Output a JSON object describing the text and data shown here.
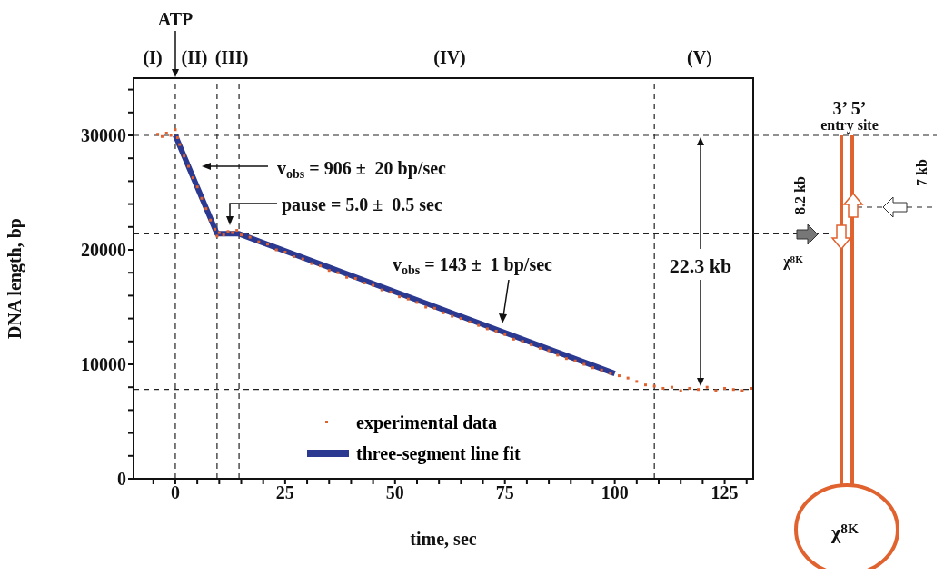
{
  "chart_data": {
    "type": "scatter",
    "xlabel": "time, sec",
    "ylabel": "DNA length, bp",
    "xlim": [
      -9.5,
      131.5
    ],
    "ylim": [
      0,
      35000
    ],
    "xticks": [
      {
        "value": -5,
        "label": null
      },
      0,
      {
        "value": 5,
        "label": null
      },
      {
        "value": 10,
        "label": null
      },
      {
        "value": 15,
        "label": null
      },
      {
        "value": 20,
        "label": null
      },
      25,
      {
        "value": 30,
        "label": null
      },
      {
        "value": 35,
        "label": null
      },
      {
        "value": 40,
        "label": null
      },
      {
        "value": 45,
        "label": null
      },
      50,
      {
        "value": 55,
        "label": null
      },
      {
        "value": 60,
        "label": null
      },
      {
        "value": 65,
        "label": null
      },
      {
        "value": 70,
        "label": null
      },
      75,
      {
        "value": 80,
        "label": null
      },
      {
        "value": 85,
        "label": null
      },
      {
        "value": 90,
        "label": null
      },
      {
        "value": 95,
        "label": null
      },
      100,
      {
        "value": 105,
        "label": null
      },
      {
        "value": 110,
        "label": null
      },
      {
        "value": 115,
        "label": null
      },
      {
        "value": 120,
        "label": null
      },
      125,
      {
        "value": 130,
        "label": null
      }
    ],
    "yticks": [
      0,
      {
        "value": 2000,
        "label": null
      },
      {
        "value": 4000,
        "label": null
      },
      {
        "value": 6000,
        "label": null
      },
      {
        "value": 8000,
        "label": null
      },
      10000,
      {
        "value": 12000,
        "label": null
      },
      {
        "value": 14000,
        "label": null
      },
      {
        "value": 16000,
        "label": null
      },
      {
        "value": 18000,
        "label": null
      },
      20000,
      {
        "value": 22000,
        "label": null
      },
      {
        "value": 24000,
        "label": null
      },
      {
        "value": 26000,
        "label": null
      },
      {
        "value": 28000,
        "label": null
      },
      30000,
      {
        "value": 32000,
        "label": null
      },
      {
        "value": 34000,
        "label": null
      }
    ],
    "grid": false,
    "legend": "bottom",
    "series": [
      {
        "name": "experimental data",
        "type": "scatter",
        "color": "#e0622f",
        "marker": "square",
        "x": [
          -4,
          -3,
          -2,
          -1,
          0,
          0.5,
          1,
          2,
          3,
          4,
          5,
          6,
          7,
          8,
          9,
          9.5,
          10,
          11,
          12,
          13,
          14,
          15,
          17,
          19,
          21,
          23,
          25,
          27,
          29,
          31,
          33,
          35,
          37,
          39,
          41,
          43,
          45,
          47,
          49,
          51,
          53,
          55,
          57,
          59,
          61,
          63,
          65,
          67,
          69,
          71,
          73,
          75,
          77,
          79,
          81,
          83,
          85,
          87,
          89,
          91,
          93,
          95,
          97,
          99,
          101,
          103,
          105,
          107,
          109,
          111,
          113,
          115,
          117,
          119,
          121,
          123,
          125,
          127,
          129,
          131
        ],
        "values": [
          30100,
          29900,
          30200,
          30000,
          30500,
          29800,
          29200,
          28200,
          27300,
          26300,
          25500,
          24500,
          23600,
          22600,
          21800,
          21200,
          21500,
          21300,
          21600,
          21500,
          21700,
          21300,
          21100,
          20700,
          20500,
          20000,
          19800,
          19400,
          19200,
          18800,
          18600,
          18200,
          18000,
          17600,
          17500,
          17100,
          16900,
          16500,
          16300,
          15900,
          15700,
          15400,
          15000,
          14900,
          14500,
          14200,
          14000,
          13700,
          13400,
          13100,
          12900,
          12600,
          12200,
          12000,
          11700,
          11400,
          11200,
          10800,
          10500,
          10300,
          10000,
          9700,
          9500,
          9200,
          9000,
          8800,
          8500,
          8200,
          8100,
          7900,
          8000,
          7700,
          7900,
          7800,
          8000,
          7700,
          7900,
          7800,
          7700,
          7900
        ]
      },
      {
        "name": "three-segment line fit",
        "type": "line",
        "color": "#2b3990",
        "line_style": "solid",
        "marker": "none",
        "x": [
          0,
          9.5,
          14.5,
          100
        ],
        "values": [
          30000,
          21400,
          21400,
          9200
        ]
      }
    ],
    "ref_lines": [
      {
        "axis": "x",
        "value": 0,
        "line_style": "dashed"
      },
      {
        "axis": "x",
        "value": 9.5,
        "line_style": "dashed"
      },
      {
        "axis": "x",
        "value": 14.5,
        "line_style": "dashed"
      },
      {
        "axis": "x",
        "value": 109,
        "line_style": "dashed"
      },
      {
        "axis": "y",
        "value": 30000,
        "line_style": "dashed"
      },
      {
        "axis": "y",
        "value": 21400,
        "line_style": "dashed"
      },
      {
        "axis": "y",
        "value": 7800,
        "line_style": "dashed"
      }
    ],
    "annotations": [
      "ATP",
      "(I)",
      "(II)",
      "(III)",
      "(IV)",
      "(V)",
      "v$_{obs}$ = 906 ±  20 bp/sec",
      "pause = 5.0 ±  0.5 sec",
      "v$_{obs}$ = 143 ±  1 bp/sec",
      "22.3 kb",
      "3’ 5’",
      "entry site",
      "8.2 kb",
      "7 kb",
      "χ$^{8K}$",
      "χ$^{8K}$"
    ]
  }
}
